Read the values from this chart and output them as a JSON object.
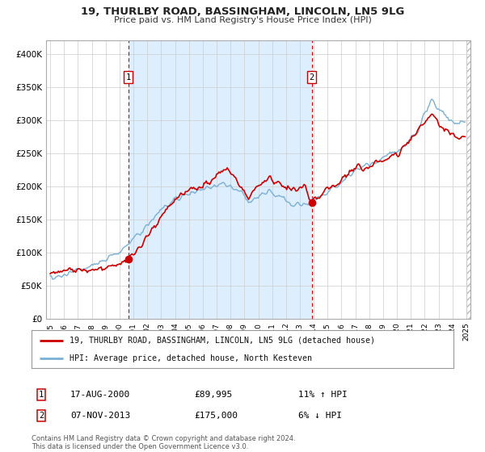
{
  "title": "19, THURLBY ROAD, BASSINGHAM, LINCOLN, LN5 9LG",
  "subtitle": "Price paid vs. HM Land Registry's House Price Index (HPI)",
  "legend_line1": "19, THURLBY ROAD, BASSINGHAM, LINCOLN, LN5 9LG (detached house)",
  "legend_line2": "HPI: Average price, detached house, North Kesteven",
  "sale1_date": "17-AUG-2000",
  "sale1_price": "£89,995",
  "sale1_hpi": "11% ↑ HPI",
  "sale1_year": 2000.63,
  "sale1_value": 89995,
  "sale2_date": "07-NOV-2013",
  "sale2_price": "£175,000",
  "sale2_hpi": "6% ↓ HPI",
  "sale2_year": 2013.85,
  "sale2_value": 175000,
  "vline1_year": 2000.63,
  "vline2_year": 2013.85,
  "red_color": "#cc0000",
  "blue_color": "#7ab0d4",
  "shade_color": "#ddeeff",
  "background_color": "#ffffff",
  "plot_bg_color": "#ffffff",
  "footnote": "Contains HM Land Registry data © Crown copyright and database right 2024.\nThis data is licensed under the Open Government Licence v3.0.",
  "xlim_min": 1994.7,
  "xlim_max": 2025.3,
  "ylim_min": 0,
  "ylim_max": 420000,
  "yticks": [
    0,
    50000,
    100000,
    150000,
    200000,
    250000,
    300000,
    350000,
    400000
  ],
  "ytick_labels": [
    "£0",
    "£50K",
    "£100K",
    "£150K",
    "£200K",
    "£250K",
    "£300K",
    "£350K",
    "£400K"
  ]
}
